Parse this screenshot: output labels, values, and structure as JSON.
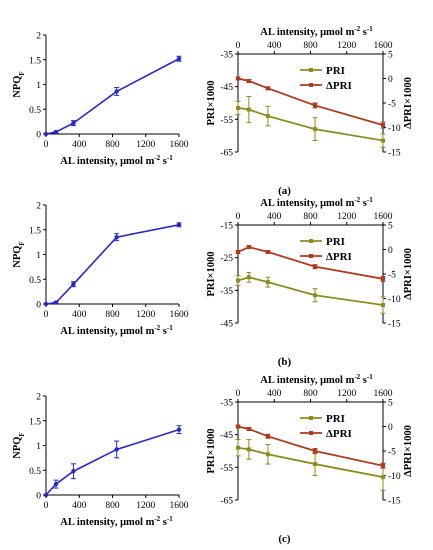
{
  "chart_data": [
    {
      "id": "a-npq",
      "type": "line",
      "xlabel": "AL intensity, μmol m",
      "xlabel_sup": "-2",
      "xlabel_tail": " s",
      "xlabel_sup2": "-1",
      "ylabel": "NPQ",
      "ylabel_sub": "F",
      "xlim": [
        0,
        1600
      ],
      "ylim": [
        0,
        2
      ],
      "xticks": [
        "0",
        "400",
        "800",
        "1200",
        "1600"
      ],
      "yticks": [
        "0",
        "0.5",
        "1",
        "1.5",
        "2"
      ],
      "color": "#2828c8",
      "x": [
        0,
        120,
        330,
        850,
        1600
      ],
      "y": [
        0,
        0.04,
        0.22,
        0.86,
        1.52
      ],
      "err": [
        0,
        0.02,
        0.05,
        0.08,
        0.05
      ]
    },
    {
      "id": "a-pri",
      "type": "line",
      "panel_label": "(a)",
      "xlabel": "AL intensity, μmol m",
      "xlabel_sup": "-2",
      "xlabel_tail": " s",
      "xlabel_sup2": "-1",
      "ylabel_left": "PRI×1000",
      "ylabel_right": "ΔPRI×1000",
      "xlim": [
        0,
        1600
      ],
      "ylim_left": [
        -65,
        -35
      ],
      "ylim_right": [
        -15,
        5
      ],
      "xticks": [
        "0",
        "400",
        "800",
        "1200",
        "1600"
      ],
      "yticks_left": [
        "-35",
        "-45",
        "-55",
        "-65"
      ],
      "yticks_right": [
        "5",
        "0",
        "-5",
        "-10",
        "-15"
      ],
      "legend": "top-right",
      "series": [
        {
          "name": "PRI",
          "axis": "left",
          "color": "#8c8c1e",
          "x": [
            0,
            120,
            330,
            850,
            1600
          ],
          "y": [
            -51.5,
            -52,
            -54,
            -58,
            -61.5
          ],
          "err": [
            2,
            4,
            3,
            3.5,
            2
          ]
        },
        {
          "name": "ΔPRI",
          "axis": "right",
          "color": "#b03a1e",
          "x": [
            0,
            120,
            330,
            850,
            1600
          ],
          "y": [
            0,
            -0.5,
            -2,
            -5.5,
            -9.5
          ],
          "err": [
            0.3,
            0.3,
            0.3,
            0.5,
            0.6
          ]
        }
      ]
    },
    {
      "id": "b-npq",
      "type": "line",
      "xlabel": "AL intensity, μmol m",
      "xlabel_sup": "-2",
      "xlabel_tail": " s",
      "xlabel_sup2": "-1",
      "ylabel": "NPQ",
      "ylabel_sub": "F",
      "xlim": [
        0,
        1600
      ],
      "ylim": [
        0,
        2
      ],
      "xticks": [
        "0",
        "400",
        "800",
        "1200",
        "1600"
      ],
      "yticks": [
        "0",
        "0.5",
        "1",
        "1.5",
        "2"
      ],
      "color": "#2828c8",
      "x": [
        0,
        120,
        330,
        850,
        1600
      ],
      "y": [
        0,
        0.03,
        0.4,
        1.35,
        1.6
      ],
      "err": [
        0,
        0.02,
        0.05,
        0.07,
        0.04
      ]
    },
    {
      "id": "b-pri",
      "type": "line",
      "panel_label": "(b)",
      "xlabel": "AL intensity, μmol m",
      "xlabel_sup": "-2",
      "xlabel_tail": " s",
      "xlabel_sup2": "-1",
      "ylabel_left": "PRI×1000",
      "ylabel_right": "ΔPRI×1000",
      "xlim": [
        0,
        1600
      ],
      "ylim_left": [
        -45,
        -15
      ],
      "ylim_right": [
        -15,
        5
      ],
      "xticks": [
        "0",
        "400",
        "800",
        "1200",
        "1600"
      ],
      "yticks_left": [
        "-15",
        "-25",
        "-35",
        "-45"
      ],
      "yticks_right": [
        "5",
        "0",
        "-5",
        "-10",
        "-15"
      ],
      "legend": "top-right",
      "series": [
        {
          "name": "PRI",
          "axis": "left",
          "color": "#8c8c1e",
          "x": [
            0,
            120,
            330,
            850,
            1600
          ],
          "y": [
            -32,
            -31,
            -32.5,
            -36.5,
            -39.5
          ],
          "err": [
            1.5,
            1.5,
            1.5,
            2,
            2.5
          ]
        },
        {
          "name": "ΔPRI",
          "axis": "right",
          "color": "#b03a1e",
          "x": [
            0,
            120,
            330,
            850,
            1600
          ],
          "y": [
            -0.5,
            0.5,
            -0.5,
            -3.5,
            -6
          ],
          "err": [
            0.3,
            0.3,
            0.3,
            0.4,
            0.5
          ]
        }
      ]
    },
    {
      "id": "c-npq",
      "type": "line",
      "xlabel": "AL intensity, μmol m",
      "xlabel_sup": "-2",
      "xlabel_tail": " s",
      "xlabel_sup2": "-1",
      "ylabel": "NPQ",
      "ylabel_sub": "F",
      "xlim": [
        0,
        1600
      ],
      "ylim": [
        0,
        2
      ],
      "xticks": [
        "0",
        "400",
        "800",
        "1200",
        "1600"
      ],
      "yticks": [
        "0",
        "0.5",
        "1",
        "1.5",
        "2"
      ],
      "color": "#2828c8",
      "x": [
        0,
        120,
        330,
        850,
        1600
      ],
      "y": [
        0,
        0.22,
        0.48,
        0.92,
        1.32
      ],
      "err": [
        0,
        0.08,
        0.15,
        0.17,
        0.08
      ]
    },
    {
      "id": "c-pri",
      "type": "line",
      "panel_label": "(c)",
      "xlabel": "AL intensity, μmol m",
      "xlabel_sup": "-2",
      "xlabel_tail": " s",
      "xlabel_sup2": "-1",
      "ylabel_left": "PRI×1000",
      "ylabel_right": "ΔPRI×1000",
      "xlim": [
        0,
        1600
      ],
      "ylim_left": [
        -65,
        -35
      ],
      "ylim_right": [
        -15,
        5
      ],
      "xticks": [
        "0",
        "400",
        "800",
        "1200",
        "1600"
      ],
      "yticks_left": [
        "-35",
        "-45",
        "-55",
        "-65"
      ],
      "yticks_right": [
        "5",
        "0",
        "-5",
        "-10",
        "-15"
      ],
      "legend": "top-right",
      "series": [
        {
          "name": "PRI",
          "axis": "left",
          "color": "#8c8c1e",
          "x": [
            0,
            120,
            330,
            850,
            1600
          ],
          "y": [
            -49,
            -49.5,
            -51,
            -54,
            -58
          ],
          "err": [
            2.5,
            3,
            3,
            3.5,
            4
          ]
        },
        {
          "name": "ΔPRI",
          "axis": "right",
          "color": "#b03a1e",
          "x": [
            0,
            120,
            330,
            850,
            1600
          ],
          "y": [
            0,
            -0.5,
            -2,
            -5,
            -8
          ],
          "err": [
            0.3,
            0.3,
            0.4,
            0.5,
            0.5
          ]
        }
      ]
    }
  ]
}
